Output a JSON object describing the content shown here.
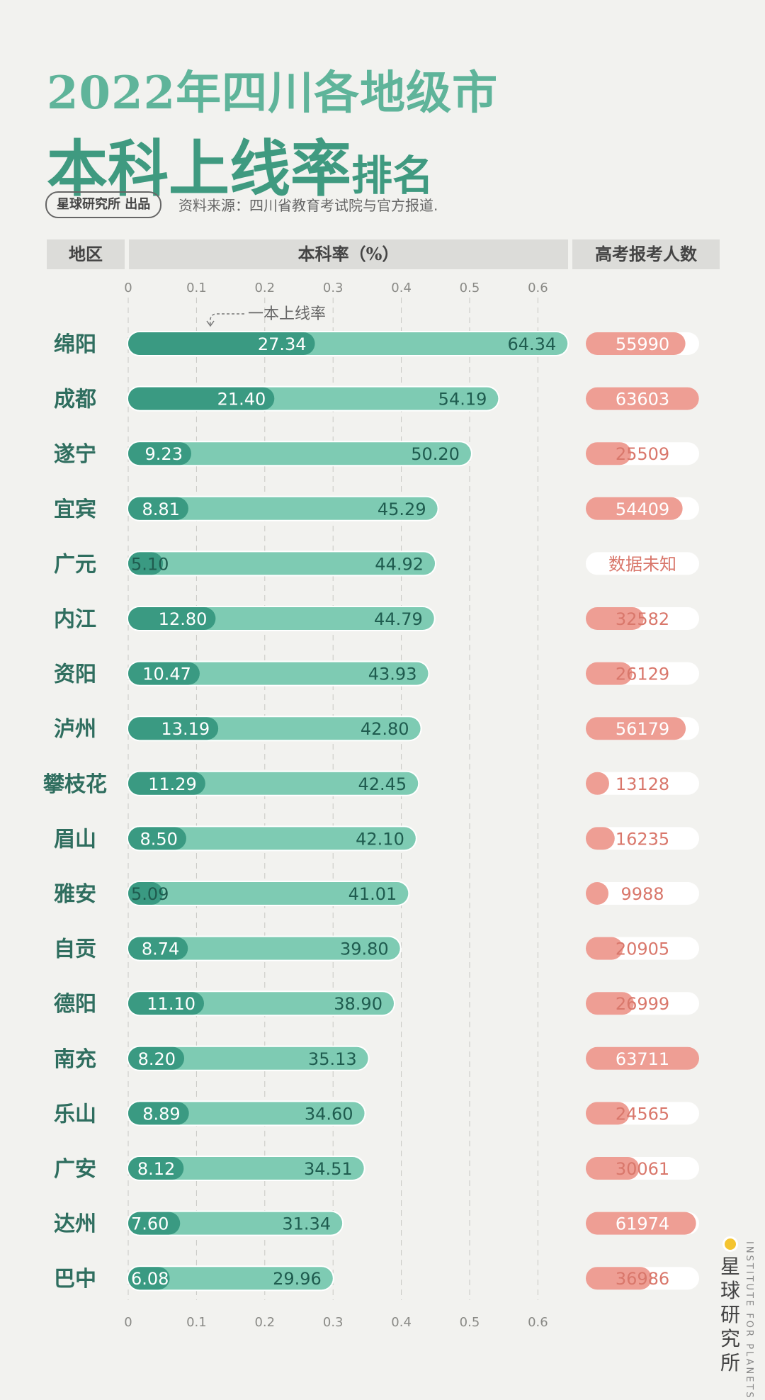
{
  "title_line1": "2022年四川各地级市",
  "title_line2_big": "本科上线率",
  "title_line2_small": "排名",
  "badge": "星球研究所 出品",
  "source": "资料来源：四川省教育考试院与官方报道.",
  "headers": {
    "region": "地区",
    "rate": "本科率（%）",
    "exam": "高考报考人数"
  },
  "annotation": "一本上线率",
  "brand": {
    "cn": "星球研究所",
    "en": "INSTITUTE FOR PLANETS"
  },
  "colors": {
    "benke": "#7ecbb3",
    "yiben": "#3a9a82",
    "exam": "#ee9e94",
    "exam_text": "#d9776b",
    "bar_text": "#1f5c4f",
    "yiben_text": "#ffffff"
  },
  "chart_data": {
    "type": "bar",
    "orientation": "horizontal",
    "xlim": [
      0,
      0.65
    ],
    "xticks": [
      "0",
      "0.1",
      "0.2",
      "0.3",
      "0.4",
      "0.5",
      "0.6"
    ],
    "categories": [
      "绵阳",
      "成都",
      "遂宁",
      "宜宾",
      "广元",
      "内江",
      "资阳",
      "泸州",
      "攀枝花",
      "眉山",
      "雅安",
      "自贡",
      "德阳",
      "南充",
      "乐山",
      "广安",
      "达州",
      "巴中"
    ],
    "series": [
      {
        "name": "",
        "values": [
          64.34,
          54.19,
          50.2,
          45.29,
          44.92,
          44.79,
          43.93,
          42.8,
          42.45,
          42.1,
          41.01,
          39.8,
          38.9,
          35.13,
          34.6,
          34.51,
          31.34,
          29.96
        ]
      },
      {
        "name": "一本上线率",
        "values": [
          27.34,
          21.4,
          9.23,
          8.81,
          5.1,
          12.8,
          10.47,
          13.19,
          11.29,
          8.5,
          5.09,
          8.74,
          11.1,
          8.2,
          8.89,
          8.12,
          7.6,
          6.08
        ]
      },
      {
        "name": "高考报考人数",
        "values": [
          55990,
          63603,
          25509,
          54409,
          null,
          32582,
          26129,
          56179,
          13128,
          16235,
          9988,
          20905,
          26999,
          63711,
          24565,
          30061,
          61974,
          36986
        ]
      }
    ],
    "value_labels": {
      "benke": [
        "64.34",
        "54.19",
        "50.20",
        "45.29",
        "44.92",
        "44.79",
        "43.93",
        "42.80",
        "42.45",
        "42.10",
        "41.01",
        "39.80",
        "38.90",
        "35.13",
        "34.60",
        "34.51",
        "31.34",
        "29.96"
      ],
      "yiben": [
        "27.34",
        "21.40",
        "9.23",
        "8.81",
        "5.10",
        "12.80",
        "10.47",
        "13.19",
        "11.29",
        "8.50",
        "5.09",
        "8.74",
        "11.10",
        "8.20",
        "8.89",
        "8.12",
        "7.60",
        "6.08"
      ],
      "exam": [
        "55990",
        "63603",
        "25509",
        "54409",
        "数据未知",
        "32582",
        "26129",
        "56179",
        "13128",
        "16235",
        "9988",
        "20905",
        "26999",
        "63711",
        "24565",
        "30061",
        "61974",
        "36986"
      ]
    },
    "exam_max": 63711
  }
}
